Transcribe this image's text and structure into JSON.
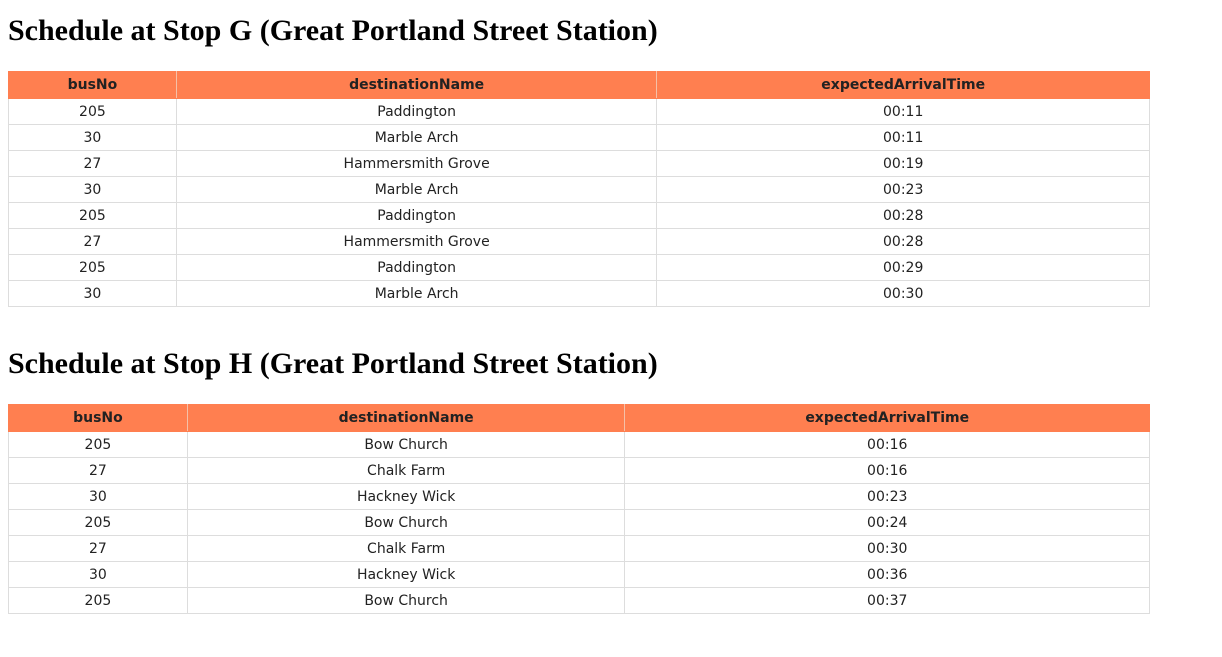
{
  "stop_g": {
    "title": "Schedule at Stop G (Great Portland Street Station)",
    "columns": [
      "busNo",
      "destinationName",
      "expectedArrivalTime"
    ],
    "rows": [
      [
        "205",
        "Paddington",
        "00:11"
      ],
      [
        "30",
        "Marble Arch",
        "00:11"
      ],
      [
        "27",
        "Hammersmith Grove",
        "00:19"
      ],
      [
        "30",
        "Marble Arch",
        "00:23"
      ],
      [
        "205",
        "Paddington",
        "00:28"
      ],
      [
        "27",
        "Hammersmith Grove",
        "00:28"
      ],
      [
        "205",
        "Paddington",
        "00:29"
      ],
      [
        "30",
        "Marble Arch",
        "00:30"
      ]
    ]
  },
  "stop_h": {
    "title": "Schedule at Stop H (Great Portland Street Station)",
    "columns": [
      "busNo",
      "destinationName",
      "expectedArrivalTime"
    ],
    "rows": [
      [
        "205",
        "Bow Church",
        "00:16"
      ],
      [
        "27",
        "Chalk Farm",
        "00:16"
      ],
      [
        "30",
        "Hackney Wick",
        "00:23"
      ],
      [
        "205",
        "Bow Church",
        "00:24"
      ],
      [
        "27",
        "Chalk Farm",
        "00:30"
      ],
      [
        "30",
        "Hackney Wick",
        "00:36"
      ],
      [
        "205",
        "Bow Church",
        "00:37"
      ]
    ]
  },
  "colors": {
    "header_bg": "#ff7f50",
    "border": "#dddddd"
  }
}
